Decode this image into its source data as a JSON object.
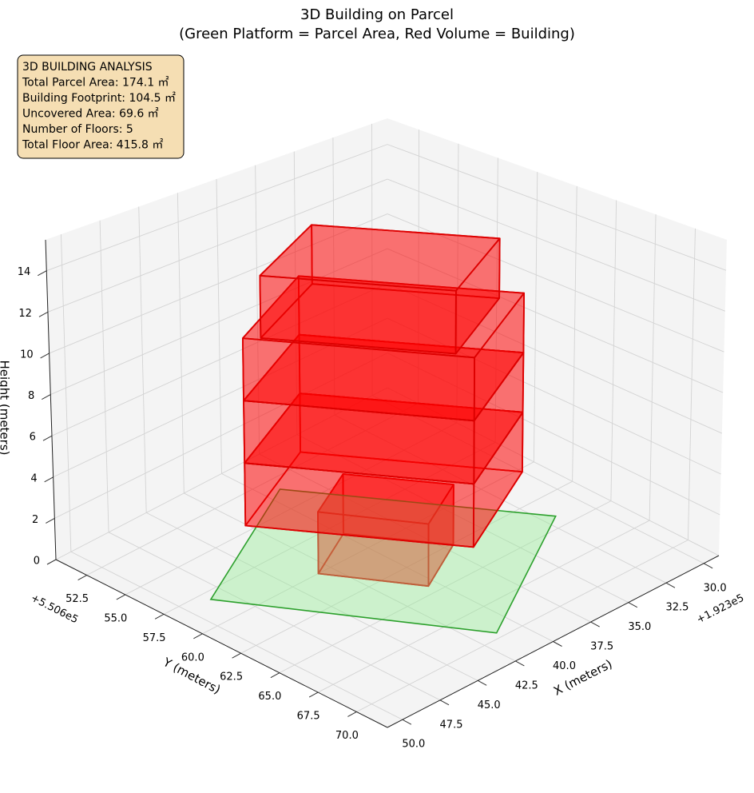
{
  "chart_data": {
    "type": "building3d",
    "title": "3D Building on Parcel",
    "subtitle": "(Green Platform = Parcel Area, Red Volume = Building)",
    "info_box": [
      "3D BUILDING ANALYSIS",
      "Total Parcel Area: 174.1 ㎡",
      "Building Footprint: 104.5 ㎡",
      "Uncovered Area: 69.6 ㎡",
      "Number of Floors: 5",
      "Total Floor Area: 415.8 ㎡"
    ],
    "xlabel": "X (meters)",
    "ylabel": "Y (meters)",
    "zlabel": "Height (meters)",
    "x_offset_label": "+1.923e5",
    "y_offset_label": "+5.506e5",
    "xlim": [
      29,
      51
    ],
    "ylim": [
      50.5,
      72
    ],
    "zlim": [
      0,
      15.5
    ],
    "xticks": [
      {
        "value": 30,
        "label": "30.0"
      },
      32.5,
      {
        "value": 35,
        "label": "35.0"
      },
      37.5,
      {
        "value": 40,
        "label": "40.0"
      },
      42.5,
      {
        "value": 45,
        "label": "45.0"
      },
      47.5,
      {
        "value": 50,
        "label": "50.0"
      }
    ],
    "yticks": [
      52.5,
      {
        "value": 55,
        "label": "55.0"
      },
      57.5,
      {
        "value": 60,
        "label": "60.0"
      },
      62.5,
      {
        "value": 65,
        "label": "65.0"
      },
      67.5,
      {
        "value": 70,
        "label": "70.0"
      }
    ],
    "zticks": [
      0,
      2,
      4,
      6,
      8,
      10,
      12,
      14
    ],
    "grid": true,
    "parcel": {
      "color": "#90ee90",
      "edgecolor": "#2ca02c",
      "footprint": [
        [
          48.5,
          58.1
        ],
        [
          41.3,
          69.6
        ],
        [
          31.8,
          64.15
        ],
        [
          39.1,
          53.4
        ]
      ]
    },
    "building_color": "#ff0000",
    "building_edgecolor": "#dd0000",
    "floors": [
      {
        "footprint": [
          [
            43.3,
            60.0
          ],
          [
            40.5,
            64.4
          ],
          [
            37.0,
            62.6
          ],
          [
            39.9,
            58.3
          ]
        ],
        "z": [
          0,
          3
        ]
      },
      {
        "footprint": [
          [
            46.6,
            58.55
          ],
          [
            40.6,
            67.4
          ],
          [
            33.9,
            64.0
          ],
          [
            39.8,
            55.45
          ]
        ],
        "z": [
          3,
          6
        ]
      },
      {
        "footprint": [
          [
            46.6,
            58.55
          ],
          [
            40.6,
            67.4
          ],
          [
            33.9,
            64.0
          ],
          [
            39.8,
            55.45
          ]
        ],
        "z": [
          6,
          9
        ]
      },
      {
        "footprint": [
          [
            46.6,
            58.55
          ],
          [
            40.6,
            67.4
          ],
          [
            33.9,
            64.0
          ],
          [
            39.8,
            55.45
          ]
        ],
        "z": [
          9,
          12
        ]
      },
      {
        "footprint": [
          [
            46.0,
            59.1
          ],
          [
            40.9,
            66.5
          ],
          [
            35.1,
            63.6
          ],
          [
            40.0,
            56.5
          ]
        ],
        "z": [
          12,
          15
        ]
      }
    ]
  }
}
